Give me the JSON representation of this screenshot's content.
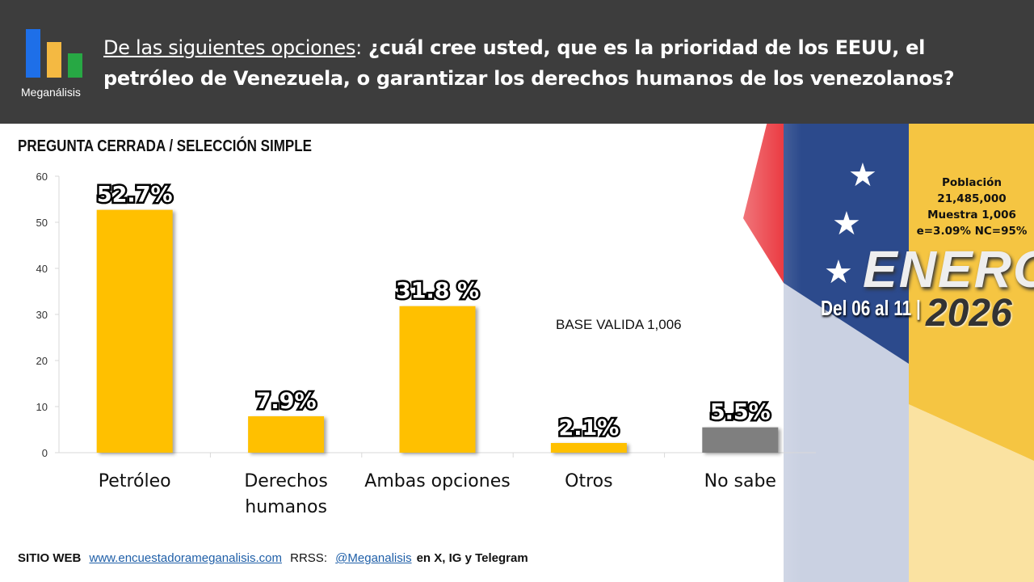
{
  "header": {
    "logo_text": "Meganálisis",
    "title_prefix": "De las siguientes opciones",
    "title_colon": ":",
    "title_main": "¿cuál cree usted, que es la prioridad de los EEUU, el petróleo de Venezuela, o garantizar los derechos humanos de los venezolanos?"
  },
  "subtitle": "PREGUNTA CERRADA / SELECCIÓN SIMPLE",
  "base": "BASE VALIDA 1,006",
  "info": {
    "l1": "Población",
    "l2": "21,485,000",
    "l3": "Muestra 1,006",
    "l4": "e=3.09%  NC=95%"
  },
  "period": {
    "month": "ENERO",
    "range": "Del 06 al 11 |",
    "year": "2026"
  },
  "footer": {
    "site_label": "SITIO WEB",
    "site": "www.encuestadorameganalisis.com",
    "rrss_label": "RRSS:",
    "handle": "@Meganalisis",
    "tail": "en X, IG y Telegram"
  },
  "colors": {
    "bar": "#FFC000",
    "bar_nosabe": "#7F7F7F",
    "header": "#3d3d3d"
  },
  "chart_data": {
    "type": "bar",
    "categories": [
      "Petróleo",
      "Derechos humanos",
      "Ambas opciones",
      "Otros",
      "No sabe"
    ],
    "values": [
      52.7,
      7.9,
      31.8,
      2.1,
      5.5
    ],
    "labels": [
      "52.7%",
      "7.9%",
      "31.8 %",
      "2.1%",
      "5.5%"
    ],
    "yticks": [
      0,
      10,
      20,
      30,
      40,
      50,
      60
    ],
    "ylim": [
      0,
      60
    ],
    "title": "",
    "xlabel": "",
    "ylabel": ""
  }
}
